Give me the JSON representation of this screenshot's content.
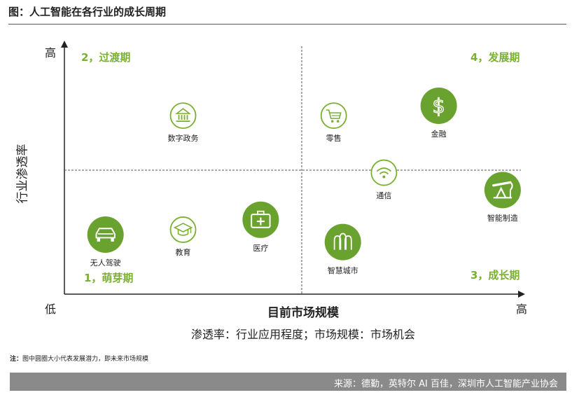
{
  "header": {
    "title": "图：人工智能在各行业的成长周期"
  },
  "chart_data": {
    "type": "scatter",
    "title": "图：人工智能在各行业的成长周期",
    "xlabel": "目前市场规模",
    "ylabel": "行业渗透率",
    "x_low_label": "低",
    "x_high_label": "高",
    "y_high_label": "高",
    "xlim": [
      0,
      10
    ],
    "ylim": [
      0,
      10
    ],
    "note": "渗透率：行业应用程度；市场规模：市场机会",
    "quadrants": [
      {
        "label": "2，过渡期",
        "position": "top-left"
      },
      {
        "label": "4，发展期",
        "position": "top-right"
      },
      {
        "label": "1，萌芽期",
        "position": "bottom-left"
      },
      {
        "label": "3，成长期",
        "position": "bottom-right"
      }
    ],
    "points": [
      {
        "label": "数字政务",
        "x": 2.6,
        "y": 7.2,
        "size": "small",
        "icon": "government-building-icon"
      },
      {
        "label": "零售",
        "x": 5.9,
        "y": 7.2,
        "size": "small",
        "icon": "shopping-cart-icon"
      },
      {
        "label": "金融",
        "x": 8.2,
        "y": 7.6,
        "size": "large",
        "icon": "dollar-sign-icon"
      },
      {
        "label": "通信",
        "x": 7.0,
        "y": 4.9,
        "size": "small",
        "icon": "wifi-icon"
      },
      {
        "label": "智能制造",
        "x": 9.6,
        "y": 4.2,
        "size": "large",
        "icon": "oil-pump-icon"
      },
      {
        "label": "无人驾驶",
        "x": 0.9,
        "y": 2.4,
        "size": "large",
        "icon": "car-icon"
      },
      {
        "label": "教育",
        "x": 2.6,
        "y": 2.6,
        "size": "small",
        "icon": "graduation-cap-icon"
      },
      {
        "label": "医疗",
        "x": 4.3,
        "y": 3.0,
        "size": "large",
        "icon": "medical-kit-icon"
      },
      {
        "label": "智慧城市",
        "x": 6.1,
        "y": 2.1,
        "size": "large",
        "icon": "city-hands-icon"
      }
    ],
    "colors": {
      "accent": "#7ab030",
      "circle_fill": "#6aa22f",
      "axis": "#222222",
      "divider": "#555555"
    }
  },
  "footnote": {
    "prefix": "注：",
    "text": "图中圆圈大小代表发展潜力，即未来市场规模"
  },
  "source": {
    "text": "来源：德勤，英特尔 AI 百佳，深圳市人工智能产业协会"
  }
}
